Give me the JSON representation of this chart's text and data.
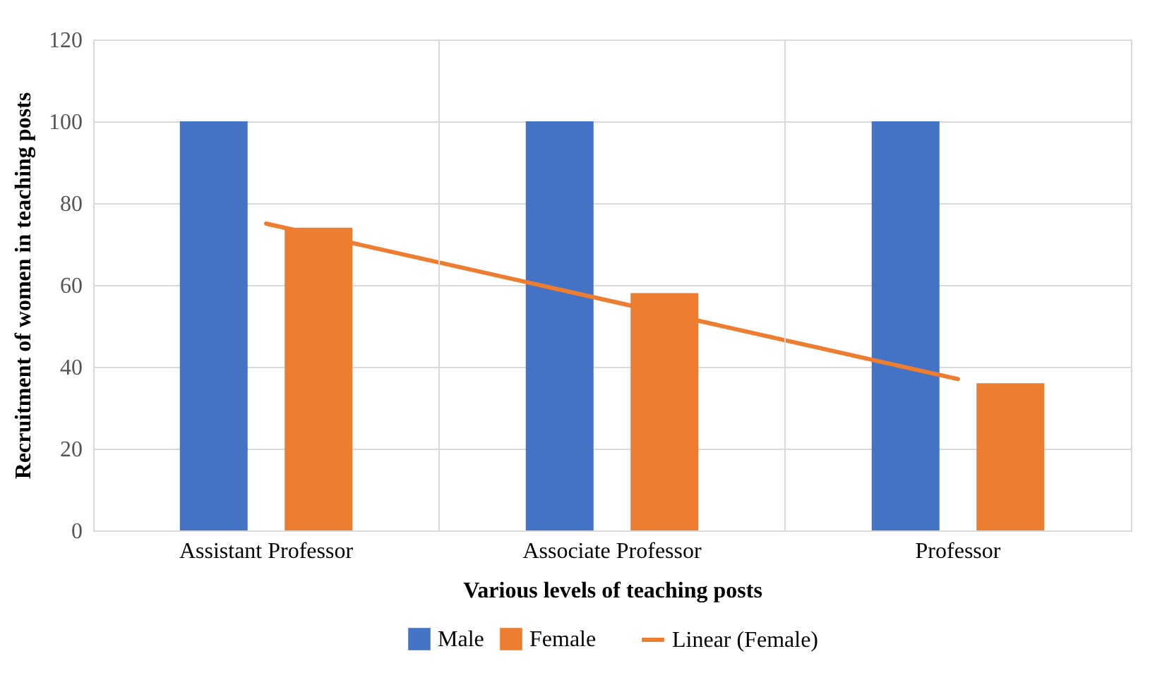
{
  "chart_data": {
    "type": "bar",
    "xlabel": "Various levels of teaching posts",
    "ylabel": "Recruitment of women in teaching posts",
    "categories": [
      "Assistant Professor",
      "Associate Professor",
      "Professor"
    ],
    "series": [
      {
        "name": "Male",
        "color": "#4472c4",
        "values": [
          100,
          100,
          100
        ]
      },
      {
        "name": "Female",
        "color": "#ed7d31",
        "values": [
          74,
          58,
          36
        ]
      },
      {
        "name": "Linear (Female)",
        "type": "line",
        "color": "#ed7d31",
        "values": [
          75,
          56,
          37
        ]
      }
    ],
    "ylim": [
      0,
      120
    ],
    "yticks": [
      0,
      20,
      40,
      60,
      80,
      100,
      120
    ],
    "grid": true,
    "legend": "bottom"
  }
}
